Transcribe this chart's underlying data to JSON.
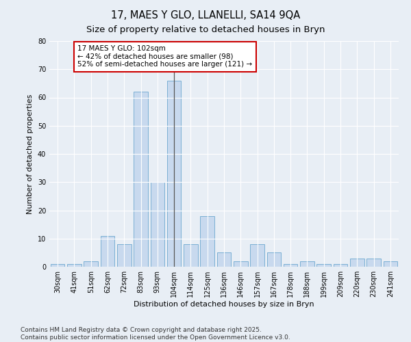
{
  "title1": "17, MAES Y GLO, LLANELLI, SA14 9QA",
  "title2": "Size of property relative to detached houses in Bryn",
  "xlabel": "Distribution of detached houses by size in Bryn",
  "ylabel": "Number of detached properties",
  "categories": [
    "30sqm",
    "41sqm",
    "51sqm",
    "62sqm",
    "72sqm",
    "83sqm",
    "93sqm",
    "104sqm",
    "114sqm",
    "125sqm",
    "136sqm",
    "146sqm",
    "157sqm",
    "167sqm",
    "178sqm",
    "188sqm",
    "199sqm",
    "209sqm",
    "220sqm",
    "230sqm",
    "241sqm"
  ],
  "values": [
    1,
    1,
    2,
    11,
    8,
    62,
    30,
    66,
    8,
    18,
    5,
    2,
    8,
    5,
    1,
    2,
    1,
    1,
    3,
    3,
    2
  ],
  "bar_color": "#c8d9ee",
  "bar_edge_color": "#7aafd4",
  "highlight_index": 7,
  "highlight_line_color": "#555555",
  "annotation_line1": "17 MAES Y GLO: 102sqm",
  "annotation_line2": "← 42% of detached houses are smaller (98)",
  "annotation_line3": "52% of semi-detached houses are larger (121) →",
  "annotation_box_color": "#ffffff",
  "annotation_box_edge_color": "#cc0000",
  "ylim": [
    0,
    80
  ],
  "yticks": [
    0,
    10,
    20,
    30,
    40,
    50,
    60,
    70,
    80
  ],
  "bg_color": "#e8eef5",
  "plot_bg_color": "#e8eef5",
  "footer_text": "Contains HM Land Registry data © Crown copyright and database right 2025.\nContains public sector information licensed under the Open Government Licence v3.0.",
  "title_fontsize": 10.5,
  "subtitle_fontsize": 9.5,
  "axis_label_fontsize": 8,
  "tick_fontsize": 7,
  "annotation_fontsize": 7.5,
  "footer_fontsize": 6.5
}
